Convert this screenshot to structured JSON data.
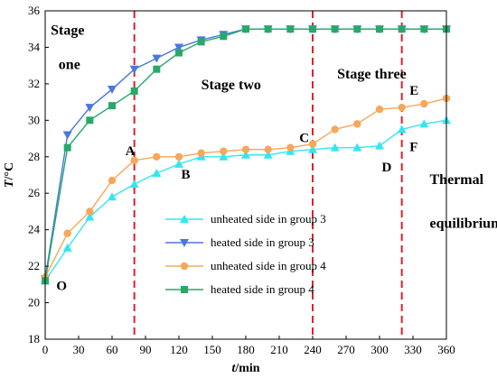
{
  "chart_data": {
    "type": "line",
    "xlabel_symbol": "t",
    "xlabel_unit": "/min",
    "ylabel_symbol": "T",
    "ylabel_unit": "/°C",
    "xlim": [
      0,
      360
    ],
    "ylim": [
      18,
      36
    ],
    "xticks": [
      0,
      30,
      60,
      90,
      120,
      150,
      180,
      210,
      240,
      270,
      300,
      330,
      360
    ],
    "yticks": [
      18,
      20,
      22,
      24,
      26,
      28,
      30,
      32,
      34,
      36
    ],
    "grid": false,
    "legend_position": "lower-center",
    "stage_dividers": [
      80,
      240,
      320
    ],
    "series": [
      {
        "name": "unheated side in group 3",
        "color": "#33e6f0",
        "marker": "triangle-up",
        "x": [
          0,
          20,
          40,
          60,
          80,
          100,
          120,
          140,
          160,
          180,
          200,
          220,
          240,
          260,
          280,
          300,
          320,
          340,
          360
        ],
        "y": [
          21.2,
          23.0,
          24.7,
          25.8,
          26.5,
          27.1,
          27.6,
          28.0,
          28.0,
          28.1,
          28.1,
          28.3,
          28.4,
          28.5,
          28.5,
          28.6,
          29.5,
          29.8,
          30.0
        ]
      },
      {
        "name": "heated side in group 3",
        "color": "#4a78e0",
        "marker": "triangle-down",
        "x": [
          0,
          20,
          40,
          60,
          80,
          100,
          120,
          140,
          160,
          180,
          200,
          220,
          240,
          260,
          280,
          300,
          320,
          340,
          360
        ],
        "y": [
          21.3,
          29.2,
          30.7,
          31.7,
          32.8,
          33.4,
          34.0,
          34.4,
          34.7,
          35.0,
          35.0,
          35.0,
          35.0,
          35.0,
          35.0,
          35.0,
          35.0,
          35.0,
          35.0
        ]
      },
      {
        "name": "unheated side in group 4",
        "color": "#f5a85a",
        "marker": "circle",
        "x": [
          0,
          20,
          40,
          60,
          80,
          100,
          120,
          140,
          160,
          180,
          200,
          220,
          240,
          260,
          280,
          300,
          320,
          340,
          360
        ],
        "y": [
          21.4,
          23.8,
          25.0,
          26.7,
          27.8,
          28.0,
          28.0,
          28.2,
          28.3,
          28.4,
          28.4,
          28.5,
          28.7,
          29.5,
          29.8,
          30.6,
          30.7,
          30.9,
          31.2
        ]
      },
      {
        "name": "heated side in group 4",
        "color": "#27a86a",
        "marker": "square",
        "x": [
          0,
          20,
          40,
          60,
          80,
          100,
          120,
          140,
          160,
          180,
          200,
          220,
          240,
          260,
          280,
          300,
          320,
          340,
          360
        ],
        "y": [
          21.2,
          28.5,
          30.0,
          30.8,
          31.6,
          32.8,
          33.7,
          34.3,
          34.6,
          35.0,
          35.0,
          35.0,
          35.0,
          35.0,
          35.0,
          35.0,
          35.0,
          35.0,
          35.0
        ]
      }
    ],
    "stage_labels": [
      {
        "text": "Stage",
        "x": 5,
        "y": 34.7
      },
      {
        "text": "one",
        "x": 12,
        "y": 32.8
      },
      {
        "text": "Stage two",
        "x": 140,
        "y": 31.7
      },
      {
        "text": "Stage three",
        "x": 262,
        "y": 32.3
      },
      {
        "text": "Thermal",
        "x": 345,
        "y": 26.5
      },
      {
        "text": "equilibrium",
        "x": 345,
        "y": 24.1
      }
    ],
    "point_labels": [
      {
        "text": "O",
        "x": 10,
        "y": 20.7
      },
      {
        "text": "A",
        "x": 72,
        "y": 28.1
      },
      {
        "text": "B",
        "x": 122,
        "y": 26.8
      },
      {
        "text": "C",
        "x": 228,
        "y": 28.8
      },
      {
        "text": "D",
        "x": 302,
        "y": 27.2
      },
      {
        "text": "E",
        "x": 327,
        "y": 31.4
      },
      {
        "text": "F",
        "x": 327,
        "y": 28.3
      }
    ]
  }
}
